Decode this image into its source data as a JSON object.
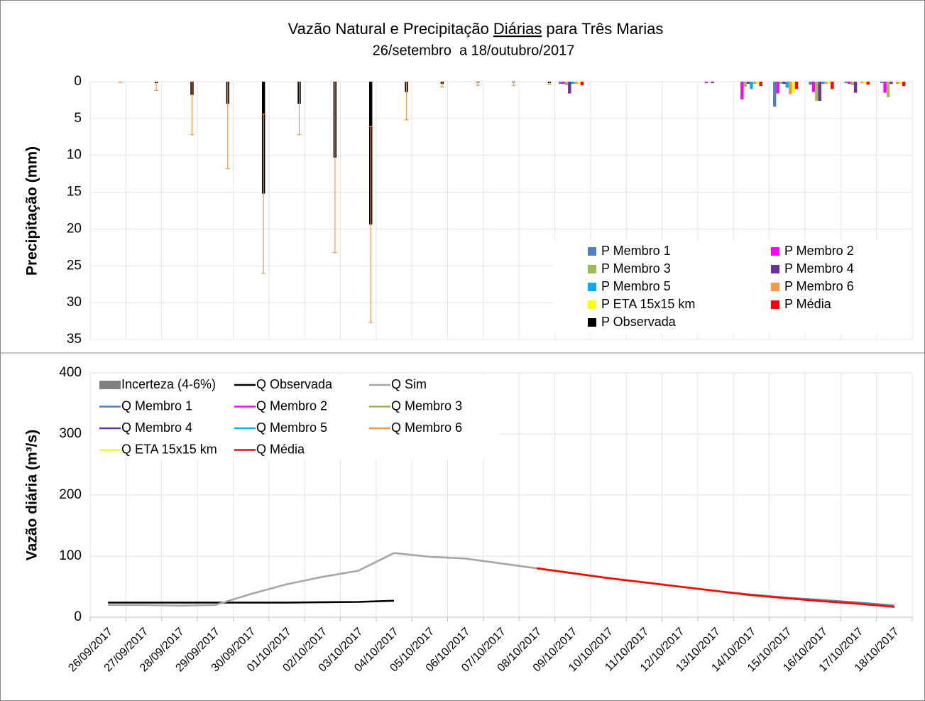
{
  "chart_data": [
    {
      "type": "bar",
      "title": [
        "Vazão Natural e Precipitação",
        "Diárias",
        "para Três Marias"
      ],
      "subtitle": "26/setembro  a 18/outubro/2017",
      "y_label": "Precipitação (mm)",
      "ylim": [
        0,
        35
      ],
      "yticks": [
        0,
        5,
        10,
        15,
        20,
        25,
        30,
        35
      ],
      "y_inverted": true,
      "grid": true,
      "legend": "lower right",
      "categories": [
        "26/09/2017",
        "27/09/2017",
        "28/09/2017",
        "29/09/2017",
        "30/09/2017",
        "01/10/2017",
        "02/10/2017",
        "03/10/2017",
        "04/10/2017",
        "05/10/2017",
        "06/10/2017",
        "07/10/2017",
        "08/10/2017",
        "09/10/2017",
        "10/10/2017",
        "11/10/2017",
        "12/10/2017",
        "13/10/2017",
        "14/10/2017",
        "15/10/2017",
        "16/10/2017",
        "17/10/2017",
        "18/10/2017"
      ],
      "error_color": "#f79646",
      "series": [
        {
          "name": "P Membro 1",
          "color": "#4f81bd",
          "values": [
            null,
            null,
            null,
            null,
            null,
            null,
            null,
            null,
            null,
            null,
            null,
            null,
            null,
            0.3,
            0,
            0,
            0,
            0,
            0,
            3.4,
            0.4,
            0.2,
            0.2
          ]
        },
        {
          "name": "P Membro 2",
          "color": "#ff00ff",
          "values": [
            null,
            null,
            null,
            null,
            null,
            null,
            null,
            null,
            null,
            null,
            null,
            null,
            null,
            0.3,
            0,
            0,
            0,
            0.2,
            2.4,
            1.6,
            1.4,
            0.3,
            1.5
          ]
        },
        {
          "name": "P Membro 3",
          "color": "#9bbb59",
          "values": [
            null,
            null,
            null,
            null,
            null,
            null,
            null,
            null,
            null,
            null,
            null,
            null,
            null,
            0.5,
            0,
            0,
            0,
            0,
            0.7,
            0.3,
            2.6,
            0.5,
            2.1
          ]
        },
        {
          "name": "P Membro 4",
          "color": "#7030a0",
          "values": [
            null,
            null,
            null,
            null,
            null,
            null,
            null,
            null,
            null,
            null,
            null,
            null,
            null,
            1.6,
            0,
            0,
            0,
            0.2,
            0.3,
            0.3,
            2.6,
            1.5,
            0.3
          ]
        },
        {
          "name": "P Membro 5",
          "color": "#00b0f0",
          "values": [
            null,
            null,
            null,
            null,
            null,
            null,
            null,
            null,
            null,
            null,
            null,
            null,
            null,
            0.3,
            0,
            0,
            0,
            0,
            1.0,
            0.8,
            0.3,
            0,
            0
          ]
        },
        {
          "name": "P Membro 6",
          "color": "#f79646",
          "values": [
            null,
            null,
            null,
            null,
            null,
            null,
            null,
            null,
            null,
            null,
            null,
            null,
            null,
            0.3,
            0,
            0,
            0,
            0,
            0.3,
            1.7,
            0.3,
            0.2,
            0.3
          ]
        },
        {
          "name": "P ETA 15x15 km",
          "color": "#ffff00",
          "values": [
            null,
            null,
            null,
            null,
            null,
            null,
            null,
            null,
            null,
            null,
            null,
            null,
            null,
            0.3,
            0,
            0,
            0,
            0,
            0.3,
            1.5,
            0.3,
            0.2,
            0.3
          ]
        },
        {
          "name": "P Média",
          "color": "#ff0000",
          "values": [
            null,
            null,
            null,
            null,
            null,
            null,
            null,
            null,
            null,
            null,
            null,
            null,
            null,
            0.5,
            0,
            0,
            0,
            0,
            0.6,
            1.0,
            1.0,
            0.4,
            0.6
          ]
        },
        {
          "name": "P Observada",
          "color": "#000000",
          "values": [
            0,
            0.2,
            1.8,
            3.0,
            15.2,
            3.0,
            10.3,
            19.4,
            1.4,
            0.3,
            0.1,
            0.1,
            0.2,
            null,
            null,
            null,
            null,
            null,
            null,
            null,
            null,
            null,
            null
          ],
          "errors": [
            0.1,
            1.0,
            5.4,
            8.8,
            10.8,
            4.2,
            12.9,
            13.3,
            3.8,
            0.4,
            0.4,
            0.4,
            0.2,
            null,
            null,
            null,
            null,
            null,
            null,
            null,
            null,
            null,
            null
          ]
        }
      ]
    },
    {
      "type": "line",
      "y_label": "Vazão diária (m³/s)",
      "ylim": [
        0,
        400
      ],
      "yticks": [
        0,
        100,
        200,
        300,
        400
      ],
      "grid": true,
      "legend": "upper left",
      "categories": [
        "26/09/2017",
        "27/09/2017",
        "28/09/2017",
        "29/09/2017",
        "30/09/2017",
        "01/10/2017",
        "02/10/2017",
        "03/10/2017",
        "04/10/2017",
        "05/10/2017",
        "06/10/2017",
        "07/10/2017",
        "08/10/2017",
        "09/10/2017",
        "10/10/2017",
        "11/10/2017",
        "12/10/2017",
        "13/10/2017",
        "14/10/2017",
        "15/10/2017",
        "16/10/2017",
        "17/10/2017",
        "18/10/2017"
      ],
      "series": [
        {
          "name": "Incerteza (4-6%)",
          "color": "#808080",
          "band": true,
          "values": [
            null,
            null,
            null,
            null,
            null,
            null,
            null,
            null,
            null,
            null,
            null,
            null,
            null,
            null,
            null,
            null,
            null,
            null,
            null,
            null,
            null,
            null,
            null
          ]
        },
        {
          "name": "Q Observada",
          "color": "#000000",
          "values": [
            24,
            24,
            24,
            24,
            24,
            24,
            24.5,
            25,
            27,
            null,
            null,
            null,
            null,
            null,
            null,
            null,
            null,
            null,
            null,
            null,
            null,
            null,
            null
          ]
        },
        {
          "name": "Q Sim",
          "color": "#a6a6a6",
          "values": [
            20,
            20,
            19,
            20,
            38,
            54,
            66,
            76,
            105,
            99,
            96,
            88,
            80,
            null,
            null,
            null,
            null,
            null,
            null,
            null,
            null,
            null,
            null
          ]
        },
        {
          "name": "Q Membro 1",
          "color": "#4f81bd",
          "values": [
            null,
            null,
            null,
            null,
            null,
            null,
            null,
            null,
            null,
            null,
            null,
            null,
            80,
            72,
            64,
            57,
            50,
            43,
            37,
            32,
            28,
            24,
            19
          ]
        },
        {
          "name": "Q Membro 2",
          "color": "#ff00ff",
          "values": [
            null,
            null,
            null,
            null,
            null,
            null,
            null,
            null,
            null,
            null,
            null,
            null,
            80,
            72,
            64,
            57,
            50,
            43,
            36,
            31,
            26,
            22,
            17
          ]
        },
        {
          "name": "Q Membro 3",
          "color": "#9bbb59",
          "values": [
            null,
            null,
            null,
            null,
            null,
            null,
            null,
            null,
            null,
            null,
            null,
            null,
            80,
            72,
            64,
            57,
            50,
            43,
            36,
            31,
            26,
            22,
            17
          ]
        },
        {
          "name": "Q Membro 4",
          "color": "#7030a0",
          "values": [
            null,
            null,
            null,
            null,
            null,
            null,
            null,
            null,
            null,
            null,
            null,
            null,
            80,
            72,
            64,
            57,
            50,
            43,
            36,
            31,
            26,
            22,
            17
          ]
        },
        {
          "name": "Q Membro 5",
          "color": "#00b0f0",
          "values": [
            null,
            null,
            null,
            null,
            null,
            null,
            null,
            null,
            null,
            null,
            null,
            null,
            80,
            72,
            64,
            57,
            50,
            43,
            36,
            31,
            26,
            22,
            17
          ]
        },
        {
          "name": "Q Membro 6",
          "color": "#f79646",
          "values": [
            null,
            null,
            null,
            null,
            null,
            null,
            null,
            null,
            null,
            null,
            null,
            null,
            80,
            72,
            64,
            57,
            50,
            43,
            36,
            31,
            26,
            22,
            17
          ]
        },
        {
          "name": "Q ETA 15x15 km",
          "color": "#ffff00",
          "values": [
            null,
            null,
            null,
            null,
            null,
            null,
            null,
            null,
            null,
            null,
            null,
            null,
            80,
            72,
            64,
            57,
            50,
            43,
            36,
            31,
            26,
            22,
            17
          ]
        },
        {
          "name": "Q Média",
          "color": "#ff0000",
          "values": [
            null,
            null,
            null,
            null,
            null,
            null,
            null,
            null,
            null,
            null,
            null,
            null,
            80,
            72,
            64,
            57,
            50,
            43,
            36,
            31,
            26,
            22,
            17
          ]
        }
      ]
    }
  ]
}
